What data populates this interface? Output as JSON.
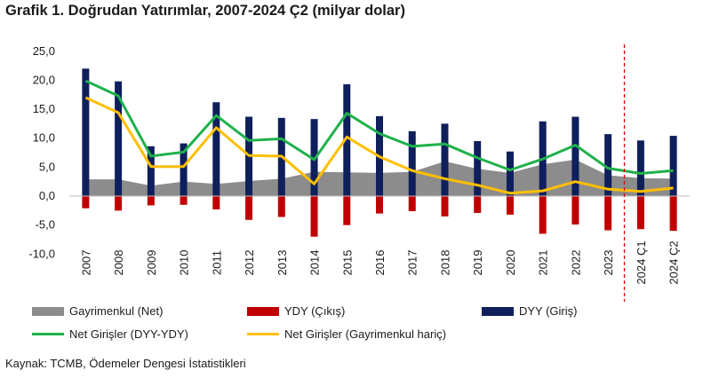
{
  "title": "Grafik 1. Doğrudan Yatırımlar, 2007-2024 Ç2 (milyar dolar)",
  "source": "Kaynak: TCMB, Ödemeler Dengesi İstatistikleri",
  "colors": {
    "gayrimenkul": "#8c8c8c",
    "ydy": "#c00000",
    "dyy": "#0f1f5c",
    "net_giris": "#1fb14a",
    "net_giris_haric": "#ffbf00",
    "divider": "#e00000"
  },
  "legend": [
    {
      "key": "gayrimenkul",
      "label": "Gayrimenkul (Net)",
      "kind": "area"
    },
    {
      "key": "ydy",
      "label": "YDY (Çıkış)",
      "kind": "bar"
    },
    {
      "key": "dyy",
      "label": "DYY (Giriş)",
      "kind": "bar"
    },
    {
      "key": "net_giris",
      "label": "Net Girişler (DYY-YDY)",
      "kind": "line"
    },
    {
      "key": "net_giris_haric",
      "label": "Net Girişler (Gayrimenkul hariç)",
      "kind": "line"
    }
  ],
  "chart_data": {
    "type": "bar",
    "categories": [
      "2007",
      "2008",
      "2009",
      "2010",
      "2011",
      "2012",
      "2013",
      "2014",
      "2015",
      "2016",
      "2017",
      "2018",
      "2019",
      "2020",
      "2021",
      "2022",
      "2023",
      "2024 Ç1",
      "2024 Ç2"
    ],
    "ylim": [
      -10,
      25
    ],
    "yticks": [
      "25,0",
      "20,0",
      "15,0",
      "10,0",
      "5,0",
      "0,0",
      "-5,0",
      "-10,0"
    ],
    "ytick_values": [
      25,
      20,
      15,
      10,
      5,
      0,
      -5,
      -10
    ],
    "divider_between": [
      "2023",
      "2024 Ç1"
    ],
    "series": [
      {
        "name": "Gayrimenkul (Net)",
        "key": "gayrimenkul",
        "type": "area",
        "values": [
          2.9,
          2.9,
          1.8,
          2.5,
          2.1,
          2.6,
          3.0,
          4.2,
          4.1,
          4.0,
          4.2,
          6.0,
          4.7,
          4.0,
          5.5,
          6.3,
          3.6,
          3.1,
          3.0
        ]
      },
      {
        "name": "YDY (Çıkış)",
        "key": "ydy",
        "type": "bar",
        "values": [
          -2.1,
          -2.5,
          -1.6,
          -1.5,
          -2.3,
          -4.1,
          -3.6,
          -7.0,
          -5.0,
          -3.0,
          -2.6,
          -3.5,
          -2.9,
          -3.2,
          -6.5,
          -4.9,
          -5.9,
          -5.7,
          -6.0
        ]
      },
      {
        "name": "DYY (Giriş)",
        "key": "dyy",
        "type": "bar",
        "values": [
          22.0,
          19.8,
          8.6,
          9.1,
          16.2,
          13.7,
          13.5,
          13.3,
          19.3,
          13.8,
          11.2,
          12.5,
          9.5,
          7.7,
          12.9,
          13.7,
          10.7,
          9.6,
          10.4
        ]
      },
      {
        "name": "Net Girişler (DYY-YDY)",
        "key": "net_giris",
        "type": "line",
        "values": [
          19.9,
          17.3,
          6.9,
          7.6,
          13.9,
          9.6,
          9.9,
          6.3,
          14.3,
          10.8,
          8.6,
          9.0,
          6.6,
          4.5,
          6.4,
          8.8,
          4.8,
          3.9,
          4.4
        ]
      },
      {
        "name": "Net Girişler (Gayrimenkul hariç)",
        "key": "net_giris_haric",
        "type": "line",
        "values": [
          17.0,
          14.4,
          5.1,
          5.1,
          11.8,
          7.0,
          6.9,
          2.1,
          10.2,
          6.8,
          4.4,
          3.0,
          1.9,
          0.5,
          0.9,
          2.5,
          1.2,
          0.8,
          1.4
        ]
      }
    ]
  }
}
